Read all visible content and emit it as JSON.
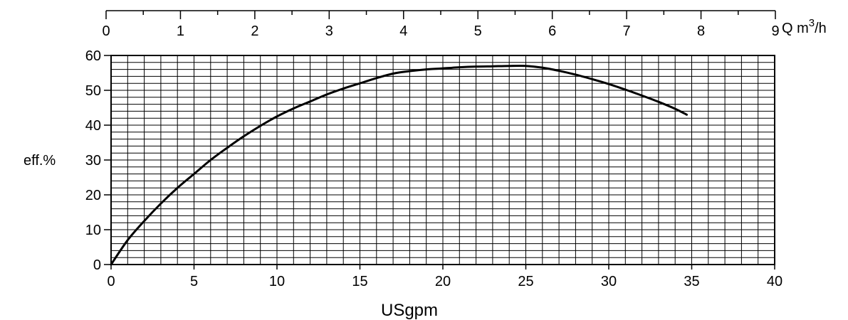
{
  "chart_data": {
    "type": "line",
    "ylabel": "eff.%",
    "xlabel": "USgpm",
    "top_axis_label_main": "Q m",
    "top_axis_label_sup": "3",
    "top_axis_label_tail": "/h",
    "xlim": [
      0,
      40
    ],
    "ylim": [
      0,
      60
    ],
    "x_ticks": [
      "0",
      "5",
      "10",
      "15",
      "20",
      "25",
      "30",
      "35",
      "40"
    ],
    "y_ticks": [
      "0",
      "10",
      "20",
      "30",
      "40",
      "50",
      "60"
    ],
    "top_axis_lim": [
      0,
      9
    ],
    "top_ticks": [
      "0",
      "1",
      "2",
      "3",
      "4",
      "5",
      "6",
      "7",
      "8",
      "9"
    ],
    "grid": true,
    "series": [
      {
        "x": [
          0,
          1,
          2,
          3,
          4,
          5,
          6,
          7,
          8,
          9,
          10,
          11,
          12,
          13,
          14,
          15,
          16,
          17,
          18,
          19,
          20,
          21,
          22,
          23,
          24,
          25,
          26,
          27,
          28,
          29,
          30,
          31,
          32,
          33,
          34,
          34.7
        ],
        "y": [
          0,
          7,
          12.5,
          17.5,
          22,
          26,
          30,
          33.5,
          36.8,
          39.8,
          42.5,
          44.8,
          46.8,
          48.8,
          50.5,
          52,
          53.5,
          54.8,
          55.5,
          56,
          56.3,
          56.6,
          56.8,
          56.9,
          57,
          57,
          56.5,
          55.6,
          54.5,
          53.2,
          51.8,
          50.2,
          48.5,
          46.7,
          44.7,
          43
        ]
      }
    ]
  }
}
